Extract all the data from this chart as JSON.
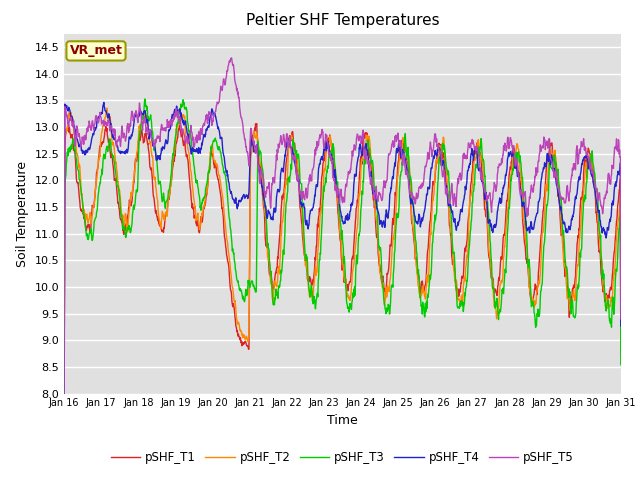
{
  "title": "Peltier SHF Temperatures",
  "xlabel": "Time",
  "ylabel": "Soil Temperature",
  "ylim": [
    8.0,
    14.75
  ],
  "yticks": [
    8.0,
    8.5,
    9.0,
    9.5,
    10.0,
    10.5,
    11.0,
    11.5,
    12.0,
    12.5,
    13.0,
    13.5,
    14.0,
    14.5
  ],
  "xtick_labels": [
    "Jan 16",
    "Jan 17",
    "Jan 18",
    "Jan 19",
    "Jan 20",
    "Jan 21",
    "Jan 22",
    "Jan 23",
    "Jan 24",
    "Jan 25",
    "Jan 26",
    "Jan 27",
    "Jan 28",
    "Jan 29",
    "Jan 30",
    "Jan 31"
  ],
  "colors": {
    "T1": "#dd2222",
    "T2": "#ff8800",
    "T3": "#00cc00",
    "T4": "#2222cc",
    "T5": "#bb44bb"
  },
  "legend_labels": [
    "pSHF_T1",
    "pSHF_T2",
    "pSHF_T3",
    "pSHF_T4",
    "pSHF_T5"
  ],
  "plot_bg_color": "#e0e0e0",
  "fig_bg_color": "#ffffff",
  "grid_color": "#ffffff",
  "vr_met_label": "VR_met",
  "line_width": 1.0,
  "n_points": 1440,
  "days": 15,
  "title_fontsize": 11,
  "axis_label_fontsize": 9,
  "tick_fontsize": 8
}
